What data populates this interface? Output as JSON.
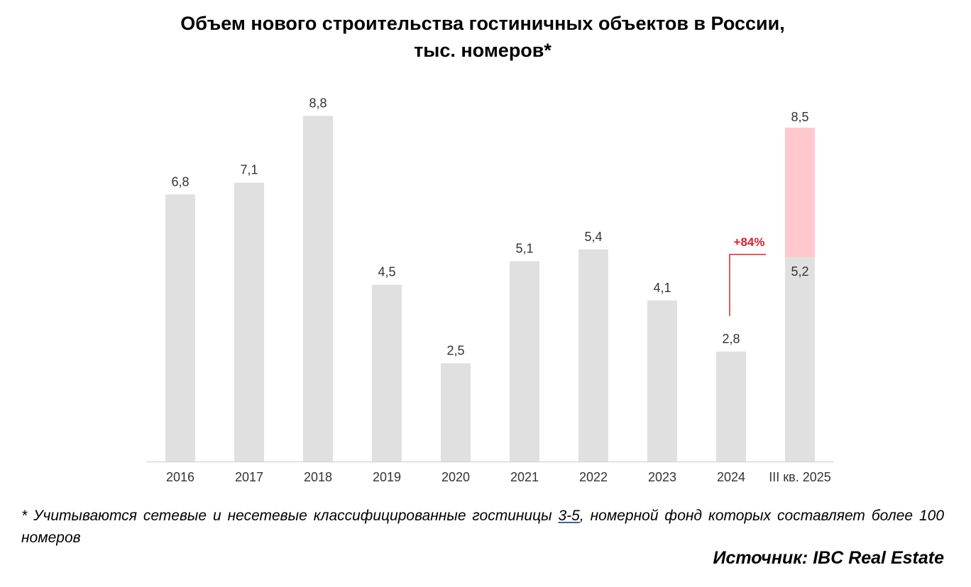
{
  "title_line1": "Объем нового строительства гостиничных объектов в России,",
  "title_line2": "тыс. номеров*",
  "chart_data": {
    "type": "bar",
    "categories": [
      "2016",
      "2017",
      "2018",
      "2019",
      "2020",
      "2021",
      "2022",
      "2023",
      "2024",
      "III кв. 2025"
    ],
    "values": [
      6.8,
      7.1,
      8.8,
      4.5,
      2.5,
      5.1,
      5.4,
      4.1,
      2.8,
      5.2
    ],
    "labels": [
      "6,8",
      "7,1",
      "8,8",
      "4,5",
      "2,5",
      "5,1",
      "5,4",
      "4,1",
      "2,8",
      "5,2"
    ],
    "stacked_extra": {
      "category": "III кв. 2025",
      "total": 8.5,
      "total_label": "8,5"
    },
    "annotation": {
      "text": "+84%",
      "from": "2024",
      "to": "III кв. 2025"
    },
    "ylim": [
      0,
      10
    ],
    "grid": false,
    "colors": {
      "bar": "#e0e0e0",
      "highlight": "#ffc8cc",
      "annotation": "#d9242f"
    }
  },
  "footnote": {
    "part1": "* Учитываются сетевые и несетевые классифицированные гостиницы ",
    "underlined": "3-5",
    "part2": ", номерной фонд которых составляет более 100 номеров"
  },
  "source": "Источник: IBC Real Estate"
}
